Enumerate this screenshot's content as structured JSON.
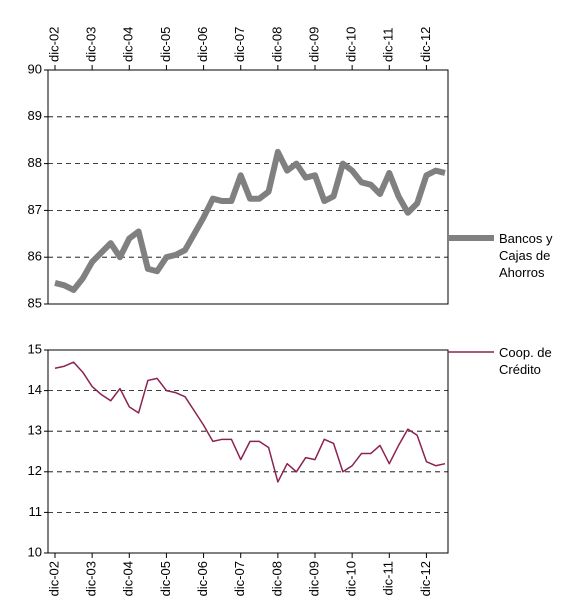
{
  "chart_data": [
    {
      "type": "line",
      "categories": [
        "dic-02",
        null,
        null,
        null,
        "dic-03",
        null,
        null,
        null,
        "dic-04",
        null,
        null,
        null,
        "dic-05",
        null,
        null,
        null,
        "dic-06",
        null,
        null,
        null,
        "dic-07",
        null,
        null,
        null,
        "dic-08",
        null,
        null,
        null,
        "dic-09",
        null,
        null,
        null,
        "dic-10",
        null,
        null,
        null,
        "dic-11",
        null,
        null,
        null,
        "dic-12",
        null,
        null
      ],
      "series": [
        {
          "name": "Bancos y Cajas de Ahorros",
          "color": "#808080",
          "values": [
            85.45,
            85.4,
            85.3,
            85.55,
            85.9,
            86.1,
            86.3,
            86.0,
            86.4,
            86.55,
            85.75,
            85.7,
            86.0,
            86.05,
            86.15,
            86.5,
            86.85,
            87.25,
            87.2,
            87.2,
            87.75,
            87.25,
            87.25,
            87.4,
            88.25,
            87.85,
            88.0,
            87.7,
            87.75,
            87.2,
            87.3,
            88.0,
            87.85,
            87.6,
            87.55,
            87.35,
            87.8,
            87.3,
            86.95,
            87.15,
            87.75,
            87.85,
            87.8
          ]
        }
      ],
      "ylim": [
        85,
        90
      ],
      "yticks": [
        85,
        86,
        87,
        88,
        89,
        90
      ],
      "grid": true
    },
    {
      "type": "line",
      "categories": [
        "dic-02",
        null,
        null,
        null,
        "dic-03",
        null,
        null,
        null,
        "dic-04",
        null,
        null,
        null,
        "dic-05",
        null,
        null,
        null,
        "dic-06",
        null,
        null,
        null,
        "dic-07",
        null,
        null,
        null,
        "dic-08",
        null,
        null,
        null,
        "dic-09",
        null,
        null,
        null,
        "dic-10",
        null,
        null,
        null,
        "dic-11",
        null,
        null,
        null,
        "dic-12",
        null,
        null
      ],
      "series": [
        {
          "name": "Coop. de Crédito",
          "color": "#8b2252",
          "values": [
            14.55,
            14.6,
            14.7,
            14.45,
            14.1,
            13.9,
            13.75,
            14.05,
            13.6,
            13.45,
            14.25,
            14.3,
            14.0,
            13.95,
            13.85,
            13.5,
            13.15,
            12.75,
            12.8,
            12.8,
            12.3,
            12.75,
            12.75,
            12.6,
            11.75,
            12.2,
            12.0,
            12.35,
            12.3,
            12.8,
            12.7,
            12.0,
            12.15,
            12.45,
            12.45,
            12.65,
            12.2,
            12.65,
            13.05,
            12.9,
            12.25,
            12.15,
            12.2
          ]
        }
      ],
      "ylim": [
        10,
        15
      ],
      "yticks": [
        10,
        11,
        12,
        13,
        14,
        15
      ],
      "grid": true
    }
  ]
}
